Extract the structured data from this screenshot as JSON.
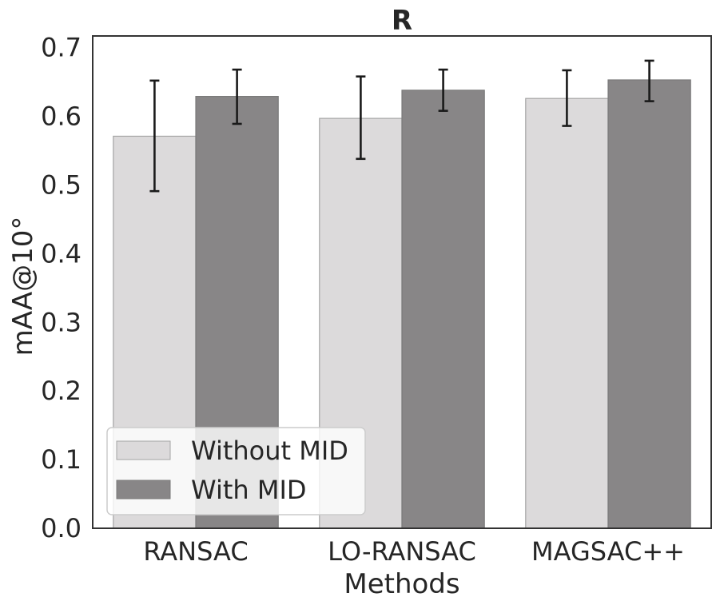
{
  "chart_data": {
    "type": "bar",
    "title": "R",
    "xlabel": "Methods",
    "ylabel": "mAA@10°",
    "categories": [
      "RANSAC",
      "LO-RANSAC",
      "MAGSAC++"
    ],
    "ylim": [
      0.0,
      0.717
    ],
    "yticks": [
      "0.0",
      "0.1",
      "0.2",
      "0.3",
      "0.4",
      "0.5",
      "0.6",
      "0.7"
    ],
    "grid": false,
    "legend_position": "lower-left",
    "series": [
      {
        "name": "Without MID",
        "color": "#dcdadb",
        "edge_color": "#a5a5a5",
        "values": [
          0.571,
          0.597,
          0.626
        ],
        "error_low": [
          0.491,
          0.538,
          0.586
        ],
        "error_high": [
          0.652,
          0.658,
          0.667
        ]
      },
      {
        "name": "With MID",
        "color": "#888687",
        "edge_color": "#7a7a7a",
        "values": [
          0.629,
          0.638,
          0.653
        ],
        "error_low": [
          0.589,
          0.608,
          0.622
        ],
        "error_high": [
          0.668,
          0.668,
          0.681
        ]
      }
    ]
  }
}
